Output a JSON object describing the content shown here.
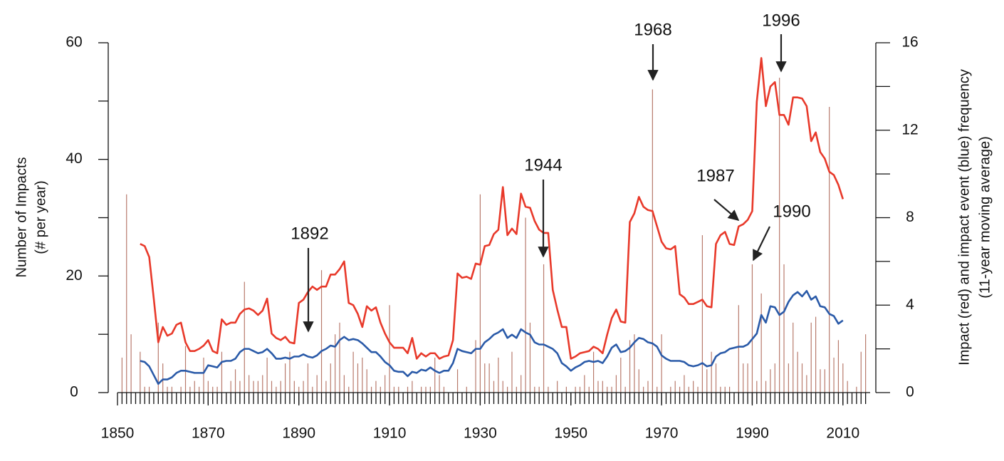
{
  "chart_data": {
    "type": "bar_line",
    "ylabel": [
      "Number of Impacts",
      "(# per year)"
    ],
    "y2label": [
      "Impact (red) and impact event (blue) frequency",
      "(11-year moving average)"
    ],
    "x": [
      1851,
      1852,
      1853,
      1854,
      1855,
      1856,
      1857,
      1858,
      1859,
      1860,
      1861,
      1862,
      1863,
      1864,
      1865,
      1866,
      1867,
      1868,
      1869,
      1870,
      1871,
      1872,
      1873,
      1874,
      1875,
      1876,
      1877,
      1878,
      1879,
      1880,
      1881,
      1882,
      1883,
      1884,
      1885,
      1886,
      1887,
      1888,
      1889,
      1890,
      1891,
      1892,
      1893,
      1894,
      1895,
      1896,
      1897,
      1898,
      1899,
      1900,
      1901,
      1902,
      1903,
      1904,
      1905,
      1906,
      1907,
      1908,
      1909,
      1910,
      1911,
      1912,
      1913,
      1914,
      1915,
      1916,
      1917,
      1918,
      1919,
      1920,
      1921,
      1922,
      1923,
      1924,
      1925,
      1926,
      1927,
      1928,
      1929,
      1930,
      1931,
      1932,
      1933,
      1934,
      1935,
      1936,
      1937,
      1938,
      1939,
      1940,
      1941,
      1942,
      1943,
      1944,
      1945,
      1946,
      1947,
      1948,
      1949,
      1950,
      1951,
      1952,
      1953,
      1954,
      1955,
      1956,
      1957,
      1958,
      1959,
      1960,
      1961,
      1962,
      1963,
      1964,
      1965,
      1966,
      1967,
      1968,
      1969,
      1970,
      1971,
      1972,
      1973,
      1974,
      1975,
      1976,
      1977,
      1978,
      1979,
      1980,
      1981,
      1982,
      1983,
      1984,
      1985,
      1986,
      1987,
      1988,
      1989,
      1990,
      1991,
      1992,
      1993,
      1994,
      1995,
      1996,
      1997,
      1998,
      1999,
      2000,
      2001,
      2002,
      2003,
      2004,
      2005,
      2006,
      2007,
      2008,
      2009,
      2010,
      2011,
      2012,
      2013,
      2014,
      2015
    ],
    "bars": {
      "color": "#b87a6c",
      "values": [
        6,
        34,
        10,
        0,
        7,
        1,
        1,
        0,
        12,
        5,
        1,
        1,
        0,
        1,
        8,
        1,
        2,
        1,
        6,
        2,
        1,
        1,
        7,
        0,
        2,
        4,
        2,
        19,
        3,
        2,
        2,
        3,
        6,
        2,
        1,
        2,
        5,
        7,
        2,
        1,
        2,
        5,
        1,
        3,
        21,
        2,
        5,
        10,
        12,
        3,
        1,
        7,
        5,
        6,
        4,
        1,
        2,
        1,
        3,
        15,
        1,
        1,
        0,
        1,
        2,
        0,
        1,
        1,
        1,
        6,
        3,
        1,
        0,
        0,
        4,
        0,
        1,
        0,
        9,
        34,
        5,
        5,
        2,
        6,
        2,
        1,
        7,
        1,
        3,
        30,
        12,
        1,
        1,
        22,
        1,
        0,
        2,
        0,
        1,
        0,
        1,
        1,
        3,
        1,
        7,
        2,
        2,
        1,
        1,
        3,
        6,
        1,
        9,
        10,
        4,
        1,
        2,
        52,
        1,
        10,
        0,
        1,
        2,
        1,
        3,
        1,
        2,
        1,
        27,
        4,
        7,
        5,
        1,
        1,
        1,
        0,
        15,
        5,
        5,
        22,
        2,
        17,
        2,
        4,
        5,
        54,
        22,
        5,
        12,
        7,
        5,
        3,
        12,
        13,
        4,
        4,
        49,
        6,
        9,
        5,
        2,
        0,
        1,
        7,
        10
      ]
    },
    "series": [
      {
        "color": "#e8392a",
        "axis": "y2",
        "values": [
          null,
          null,
          null,
          null,
          6.8,
          6.7,
          6.2,
          4.3,
          2.3,
          3.0,
          2.6,
          2.7,
          3.1,
          3.2,
          2.3,
          1.9,
          1.9,
          2.0,
          2.15,
          2.4,
          1.9,
          1.8,
          3.35,
          3.1,
          3.2,
          3.2,
          3.6,
          3.8,
          3.85,
          3.75,
          3.55,
          3.75,
          4.3,
          2.7,
          2.5,
          2.4,
          2.55,
          2.3,
          2.25,
          4.1,
          4.25,
          4.6,
          4.85,
          4.7,
          4.85,
          4.85,
          5.4,
          5.4,
          5.65,
          6.0,
          4.1,
          4.0,
          3.6,
          3.0,
          3.95,
          3.75,
          3.9,
          3.2,
          2.7,
          2.3,
          2.05,
          2.05,
          2.05,
          1.8,
          2.5,
          1.55,
          1.8,
          1.65,
          1.8,
          1.8,
          1.55,
          1.65,
          1.7,
          2.4,
          5.45,
          5.25,
          5.3,
          5.2,
          5.9,
          5.85,
          6.7,
          6.75,
          7.25,
          7.45,
          9.4,
          7.2,
          7.5,
          7.25,
          9.1,
          8.5,
          8.45,
          7.85,
          7.45,
          7.3,
          7.3,
          4.7,
          3.8,
          3.0,
          3.0,
          1.55,
          1.65,
          1.8,
          1.85,
          1.9,
          2.1,
          2.0,
          1.8,
          2.65,
          3.4,
          3.8,
          3.25,
          3.2,
          7.8,
          8.2,
          8.95,
          8.5,
          8.35,
          8.3,
          7.6,
          6.9,
          6.6,
          6.55,
          6.7,
          4.5,
          4.35,
          4.05,
          4.05,
          4.15,
          4.25,
          3.95,
          3.9,
          6.8,
          7.2,
          7.35,
          6.8,
          6.75,
          7.6,
          7.7,
          7.9,
          8.3,
          13.3,
          15.3,
          13.1,
          14.0,
          14.2,
          12.7,
          12.7,
          12.25,
          13.5,
          13.5,
          13.45,
          13.1,
          11.5,
          11.9,
          11.0,
          10.7,
          10.1,
          9.95,
          9.5,
          8.85,
          null,
          null,
          null,
          null,
          null
        ]
      },
      {
        "color": "#2a5aa8",
        "axis": "y2",
        "values": [
          null,
          null,
          null,
          null,
          1.45,
          1.4,
          1.2,
          0.8,
          0.4,
          0.6,
          0.6,
          0.7,
          0.9,
          1.0,
          1.0,
          0.95,
          0.9,
          0.9,
          0.9,
          1.25,
          1.2,
          1.15,
          1.4,
          1.45,
          1.45,
          1.55,
          1.85,
          2.0,
          2.0,
          1.9,
          1.8,
          1.85,
          2.0,
          1.8,
          1.55,
          1.55,
          1.6,
          1.55,
          1.65,
          1.65,
          1.75,
          1.65,
          1.6,
          1.7,
          1.9,
          2.0,
          2.15,
          2.1,
          2.4,
          2.55,
          2.4,
          2.45,
          2.4,
          2.25,
          2.05,
          1.85,
          1.85,
          1.65,
          1.4,
          1.25,
          1.0,
          0.95,
          0.95,
          0.75,
          0.95,
          0.9,
          1.05,
          1.0,
          1.15,
          1.0,
          0.9,
          1.0,
          1.0,
          1.35,
          2.0,
          1.9,
          1.85,
          1.8,
          2.0,
          2.0,
          2.3,
          2.45,
          2.65,
          2.75,
          2.9,
          2.5,
          2.65,
          2.5,
          2.9,
          2.75,
          2.65,
          2.3,
          2.2,
          2.2,
          2.1,
          2.0,
          1.8,
          1.35,
          1.2,
          1.0,
          1.15,
          1.25,
          1.4,
          1.45,
          1.4,
          1.45,
          1.35,
          1.65,
          2.05,
          2.2,
          1.85,
          1.9,
          2.05,
          2.3,
          2.5,
          2.45,
          2.3,
          2.25,
          2.1,
          1.7,
          1.55,
          1.45,
          1.45,
          1.45,
          1.4,
          1.25,
          1.2,
          1.25,
          1.35,
          1.2,
          1.25,
          1.65,
          1.8,
          1.85,
          2.0,
          2.05,
          2.1,
          2.1,
          2.2,
          2.45,
          2.7,
          3.55,
          3.2,
          3.95,
          3.9,
          3.55,
          3.7,
          4.15,
          4.45,
          4.6,
          4.4,
          4.65,
          4.25,
          4.4,
          3.95,
          3.9,
          3.6,
          3.5,
          3.15,
          3.3,
          null,
          null,
          null,
          null,
          null
        ]
      }
    ],
    "xlim": [
      1850,
      2016
    ],
    "xticks": [
      1850,
      1870,
      1890,
      1910,
      1930,
      1950,
      1970,
      1990,
      2010
    ],
    "ylim": [
      0,
      60
    ],
    "yticks": [
      0,
      20,
      40,
      60
    ],
    "yminorticks": [
      10,
      30,
      50
    ],
    "y2lim": [
      0,
      16
    ],
    "y2ticks": [
      0,
      4,
      8,
      12,
      16
    ],
    "y2minorticks": [
      2,
      6,
      10,
      14
    ],
    "annotations": [
      "1892",
      "1944",
      "1968",
      "1987",
      "1990",
      "1996"
    ]
  }
}
